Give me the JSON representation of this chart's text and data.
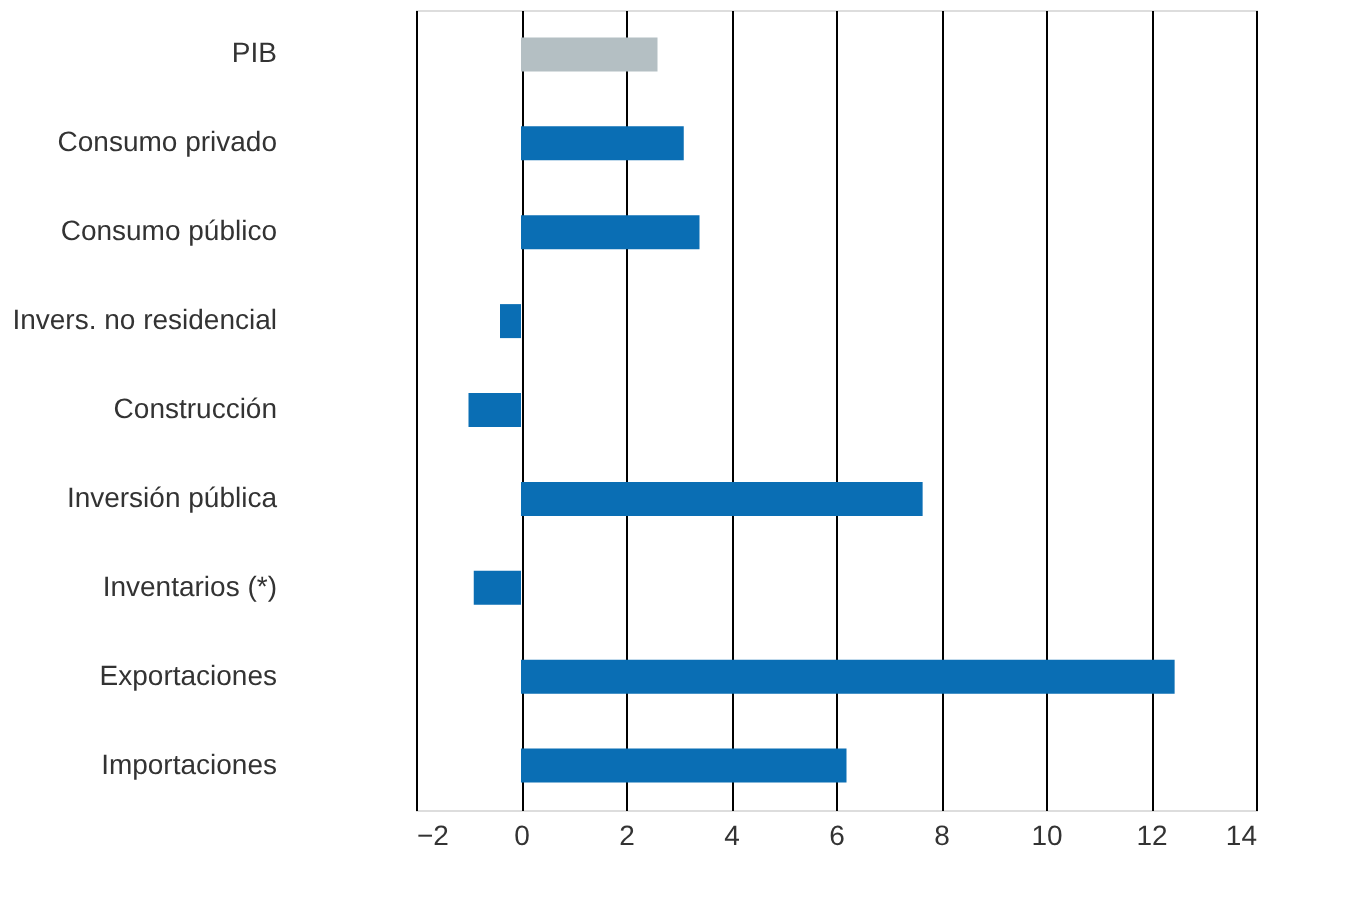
{
  "chart_data": {
    "type": "bar",
    "orientation": "horizontal",
    "categories": [
      "PIB",
      "Consumo privado",
      "Consumo público",
      "Invers. no residencial",
      "Construcción",
      "Inversión pública",
      "Inventarios (*)",
      "Exportaciones",
      "Importaciones"
    ],
    "values": [
      2.6,
      3.1,
      3.4,
      -0.4,
      -1.0,
      7.65,
      -0.9,
      12.45,
      6.2
    ],
    "colors": [
      "#b4bfc3",
      "#0a6eb4",
      "#0a6eb4",
      "#0a6eb4",
      "#0a6eb4",
      "#0a6eb4",
      "#0a6eb4",
      "#0a6eb4",
      "#0a6eb4"
    ],
    "xlim": [
      -2,
      14
    ],
    "xticks": [
      -2,
      0,
      2,
      4,
      6,
      8,
      10,
      12,
      14
    ],
    "grid": "x"
  }
}
